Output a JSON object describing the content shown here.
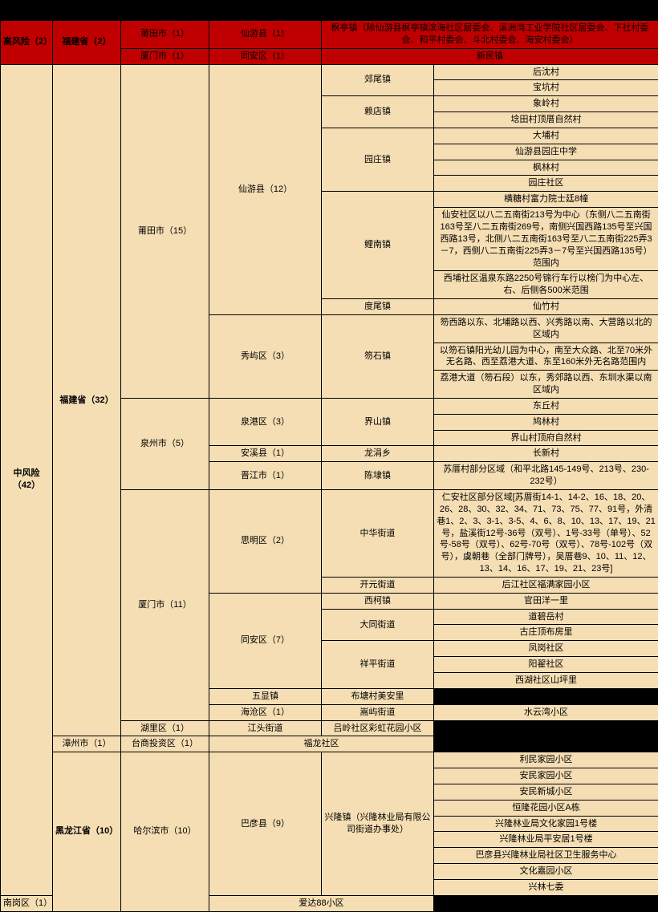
{
  "high": {
    "risk": "高风险（2）",
    "prov": "福建省（2）",
    "r1c3": "莆田市（1）",
    "r1c4": "仙游县（1）",
    "r1c5": "枫亭镇（除仙游县枫亭镇滨海社区居委会、溪洲湾工业学院社区居委会、下社村委会、和平村委会、斗北村委会、海安村委会）",
    "r2c3": "厦门市（1）",
    "r2c4": "同安区（1）",
    "r2c5": "新民镇"
  },
  "m": {
    "risk": "中风险（42）",
    "fj": "福建省（32）",
    "pt": "莆田市（15）",
    "xy": "仙游县（12）",
    "jw": "郊尾镇",
    "jw1": "后沈村",
    "jw2": "宝坑村",
    "ld": "赖店镇",
    "ld1": "象岭村",
    "ld2": "埝田村顶厝自然村",
    "yz": "园庄镇",
    "yz1": "大埔村",
    "yz2": "仙游县园庄中学",
    "yz3": "枫林村",
    "yz4": "园庄社区",
    "lnA": "横糖村富力院士廷8幢",
    "ln": "鲤南镇",
    "lnB": "仙安社区以八二五南街213号为中心（东侧八二五南街163号至八二五南街269号，南侧兴国西路135号至兴国西路13号，北侧八二五南街163号至八二五南街225弄3－7，西侧八二五南街225弄3－7号至兴国西路135号）范围内",
    "lnC": "西埔社区温泉东路2250号锦行车行以榜门为中心左、右、后侧各500米范围",
    "dw": "度尾镇",
    "dw1": "仙竹村",
    "xiu": "秀屿区（3）",
    "ws": "笏石镇",
    "ws1": "笏西路以东、北埔路以西、兴秀路以南、大营路以北的区域内",
    "ws2": "以笏石镇阳光幼儿园为中心，南至大众路、北至70米外无名路、西至荔港大道、东至160米外无名路范围内",
    "ws3": "荔港大道（笏石段）以东，秀郊路以西、东圳水渠以南区域内",
    "qz": "泉州市（5）",
    "qg": "泉港区（3）",
    "jie": "界山镇",
    "jie1": "东丘村",
    "jie2": "鸠林村",
    "jie3": "界山村顶府自然村",
    "ax": "安溪县（1）",
    "lj": "龙涓乡",
    "lj1": "长新村",
    "jj": "晋江市（1）",
    "cd": "陈埭镇",
    "cd1": "苏厝村部分区域（和平北路145-149号、213号、230-232号）",
    "xm": "厦门市（11）",
    "sm": "思明区（2）",
    "zh": "中华街道",
    "zh1": "仁安社区部分区域[苏厝街14-1、14-2、16、18、20、26、28、30、32、34、71、73、75、77、91号，外清巷1、2、3、3-1、3-5、4、6、8、10、13、17、19、21号，盐溪街12号-36号（双号）、1号-33号（单号）、52号-58号（双号）、62号-70号（双号）、78号-102号（双号），虞朝巷（全部门牌号），吴厝巷9、10、11、12、13、14、16、17、19、21、23号]",
    "ky": "开元街道",
    "ky1": "后江社区福满家园小区",
    "ta": "同安区（7）",
    "xk": "西柯镇",
    "xk1": "官田洋一里",
    "dt": "大同街道",
    "dt1": "道碧岳村",
    "dt2": "古庄顶布房里",
    "xp": "祥平街道",
    "xp1": "凤岗社区",
    "xp2": "阳翟社区",
    "xp3": "西湖社区山坪里",
    "wx": "五显镇",
    "wx1": "布塘村美安里",
    "hc": "海沧区（1）",
    "sj": "嵩屿街道",
    "sj1": "水云湾小区",
    "hl": "湖里区（1）",
    "jt": "江头街道",
    "jt1": "吕岭社区彩虹花园小区",
    "zz": "漳州市（1）",
    "ts": "台商投资区（1）",
    "fl": "福龙社区",
    "hlj": "黑龙江省（10）",
    "heb": "哈尔滨市（10）",
    "by": "巴彦县（9）",
    "xl": "兴隆镇（兴隆林业局有限公司街道办事处）",
    "xl1": "利民家园小区",
    "xl2": "安民家园小区",
    "xl3": "安民新城小区",
    "xl4": "恒隆花园小区A栋",
    "xl5": "兴隆林业局文化家园1号楼",
    "xl6": "兴隆林业局平安居1号楼",
    "xl7": "巴彦县兴隆林业局社区卫生服务中心",
    "xl8": "文化嘉园小区",
    "xl9": "兴林七委",
    "ng": "南岗区（1）",
    "ng1": "爱达88小区"
  }
}
